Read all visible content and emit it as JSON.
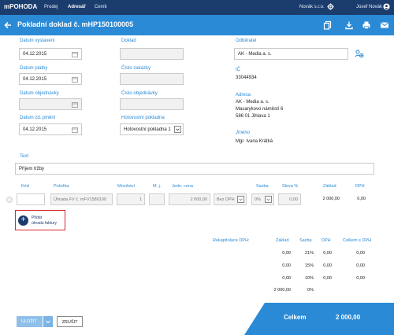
{
  "topbar": {
    "brand": "mPOHODA",
    "nav": [
      "Prodej",
      "Adresář",
      "Ceník"
    ],
    "company": "Novák s.r.o.",
    "user": "Josef Novák"
  },
  "titlebar": {
    "title": "Pokladní doklad č. mHP150100005"
  },
  "form": {
    "datum_vystaveni": {
      "label": "Datum vystavení",
      "value": "04.12.2015"
    },
    "datum_platby": {
      "label": "Datum platby",
      "value": "04.12.2015"
    },
    "datum_objednavky": {
      "label": "Datum objednávky",
      "value": ""
    },
    "datum_zd_plneni": {
      "label": "Datum zd. plnění",
      "value": "04.12.2015"
    },
    "doklad": {
      "label": "Doklad",
      "value": ""
    },
    "cislo_zakazky": {
      "label": "Číslo zakázky",
      "value": ""
    },
    "cislo_objednavky": {
      "label": "Číslo objednávky",
      "value": ""
    },
    "hotovostni_pokladna": {
      "label": "Hotovostní pokladna",
      "value": "Hotovostní pokladna 1"
    },
    "odberatel": {
      "label": "Odběratel",
      "value": "AK - Media a. s."
    },
    "ic": {
      "label": "IČ",
      "value": "33044934"
    },
    "adresa": {
      "label": "Adresa",
      "line1": "AK - Media a. s.",
      "line2": "Masarykovo náměstí 6",
      "line3": "586 01 Jihlava 1"
    },
    "jmeno": {
      "label": "Jméno",
      "value": "Mgr. Ivana Krátká"
    },
    "text": {
      "label": "Text",
      "value": "Příjem tržby"
    }
  },
  "items": {
    "headers": {
      "kod": "Kód",
      "polozka": "Položka",
      "mnozstvi": "Množství",
      "mj": "M. j.",
      "jedn_cena": "Jedn. cena",
      "sazba": "Sazba",
      "sleva": "Sleva %",
      "zaklad": "Základ",
      "dph": "DPH"
    },
    "row": {
      "kod": "",
      "polozka": "Úhrada FV č. mFV1580100",
      "mnozstvi": "1",
      "mj": "",
      "jedn_cena": "2 000,00",
      "cena_typ": "Bez DPH",
      "sazba": "0%",
      "sleva": "0,00",
      "zaklad": "2 000,00",
      "dph": "0,00"
    }
  },
  "add_payment": {
    "line1": "Přidat",
    "line2": "úhradu faktury"
  },
  "recap": {
    "title": "Rekapitulace DPH:",
    "headers": {
      "zaklad": "Základ",
      "sazba": "Sazba",
      "dph": "DPH",
      "celkem": "Celkem s DPH"
    },
    "rows": [
      {
        "zaklad": "0,00",
        "sazba": "21%",
        "dph": "0,00",
        "celkem": "0,00"
      },
      {
        "zaklad": "0,00",
        "sazba": "15%",
        "dph": "0,00",
        "celkem": "0,00"
      },
      {
        "zaklad": "0,00",
        "sazba": "10%",
        "dph": "0,00",
        "celkem": "0,00"
      },
      {
        "zaklad": "2 000,00",
        "sazba": "0%",
        "dph": "",
        "celkem": ""
      }
    ]
  },
  "footer": {
    "save": "ULOŽIT",
    "cancel": "ZRUŠIT",
    "total_label": "Celkem",
    "total_value": "2 000,00"
  },
  "colors": {
    "topbar": "#1b3d6e",
    "accent": "#2a8ad6",
    "highlight": "#d7262d"
  }
}
